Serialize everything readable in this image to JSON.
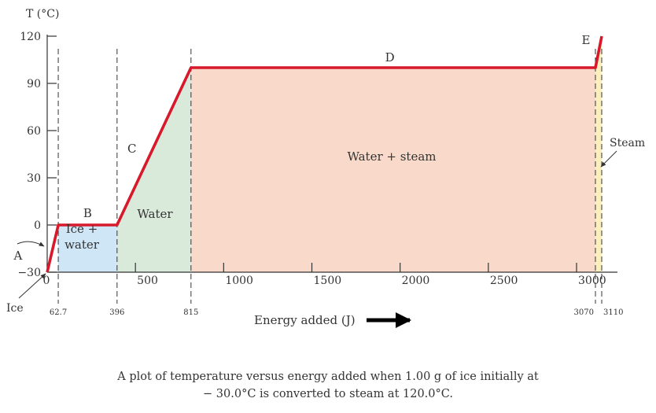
{
  "chart_data": {
    "type": "line",
    "ylabel": "T (°C)",
    "xlabel": "Energy added (J)",
    "xlim": [
      0,
      3110
    ],
    "ylim": [
      -30,
      120
    ],
    "x_ticks": [
      0,
      500,
      1000,
      1500,
      2000,
      2500,
      3000
    ],
    "x_tick_labels": [
      "0",
      "500",
      "1000",
      "1500",
      "2000",
      "2500",
      "3000"
    ],
    "y_ticks": [
      -30,
      0,
      30,
      60,
      90,
      120
    ],
    "y_tick_labels": [
      "−30",
      "0",
      "30",
      "60",
      "90",
      "120"
    ],
    "series": [
      {
        "color": "#d7192b",
        "x": [
          0,
          62.7,
          396,
          815,
          3070,
          3110
        ],
        "y": [
          -30,
          0,
          0,
          100,
          100,
          120
        ]
      }
    ],
    "marked_x": [
      {
        "x": 62.7,
        "label": "62.7"
      },
      {
        "x": 396,
        "label": "396"
      },
      {
        "x": 815,
        "label": "815"
      },
      {
        "x": 3070,
        "label": "3070"
      },
      {
        "x": 3110,
        "label": "3110"
      }
    ],
    "segments": [
      {
        "label": "A",
        "x": 31,
        "y": -15
      },
      {
        "label": "B",
        "x": 229,
        "y": 0
      },
      {
        "label": "C",
        "x": 605,
        "y": 50
      },
      {
        "label": "D",
        "x": 1942,
        "y": 100
      },
      {
        "label": "E",
        "x": 3090,
        "y": 110
      }
    ],
    "regions": [
      {
        "x0": 62.7,
        "x1": 396,
        "top": [
          0,
          0
        ],
        "color": "#cfe6f6",
        "label": [
          "Ice +",
          "water"
        ]
      },
      {
        "x0": 396,
        "x1": 815,
        "top": [
          0,
          100
        ],
        "color": "#d9eadb",
        "label": [
          "Water"
        ]
      },
      {
        "x0": 815,
        "x1": 3070,
        "top": [
          100,
          100
        ],
        "color": "#f9d9c9",
        "label": [
          "Water + steam"
        ]
      },
      {
        "x0": 3070,
        "x1": 3110,
        "top": [
          100,
          120
        ],
        "color": "#fbf0bd",
        "label": []
      }
    ],
    "annotations": [
      {
        "text": "Ice"
      },
      {
        "text": "Steam"
      }
    ],
    "grid": false,
    "legend": "none"
  },
  "caption": {
    "line1": "A plot of temperature versus energy added when 1.00 g of ice initially at",
    "line2": "− 30.0°C is converted to steam at 120.0°C."
  }
}
